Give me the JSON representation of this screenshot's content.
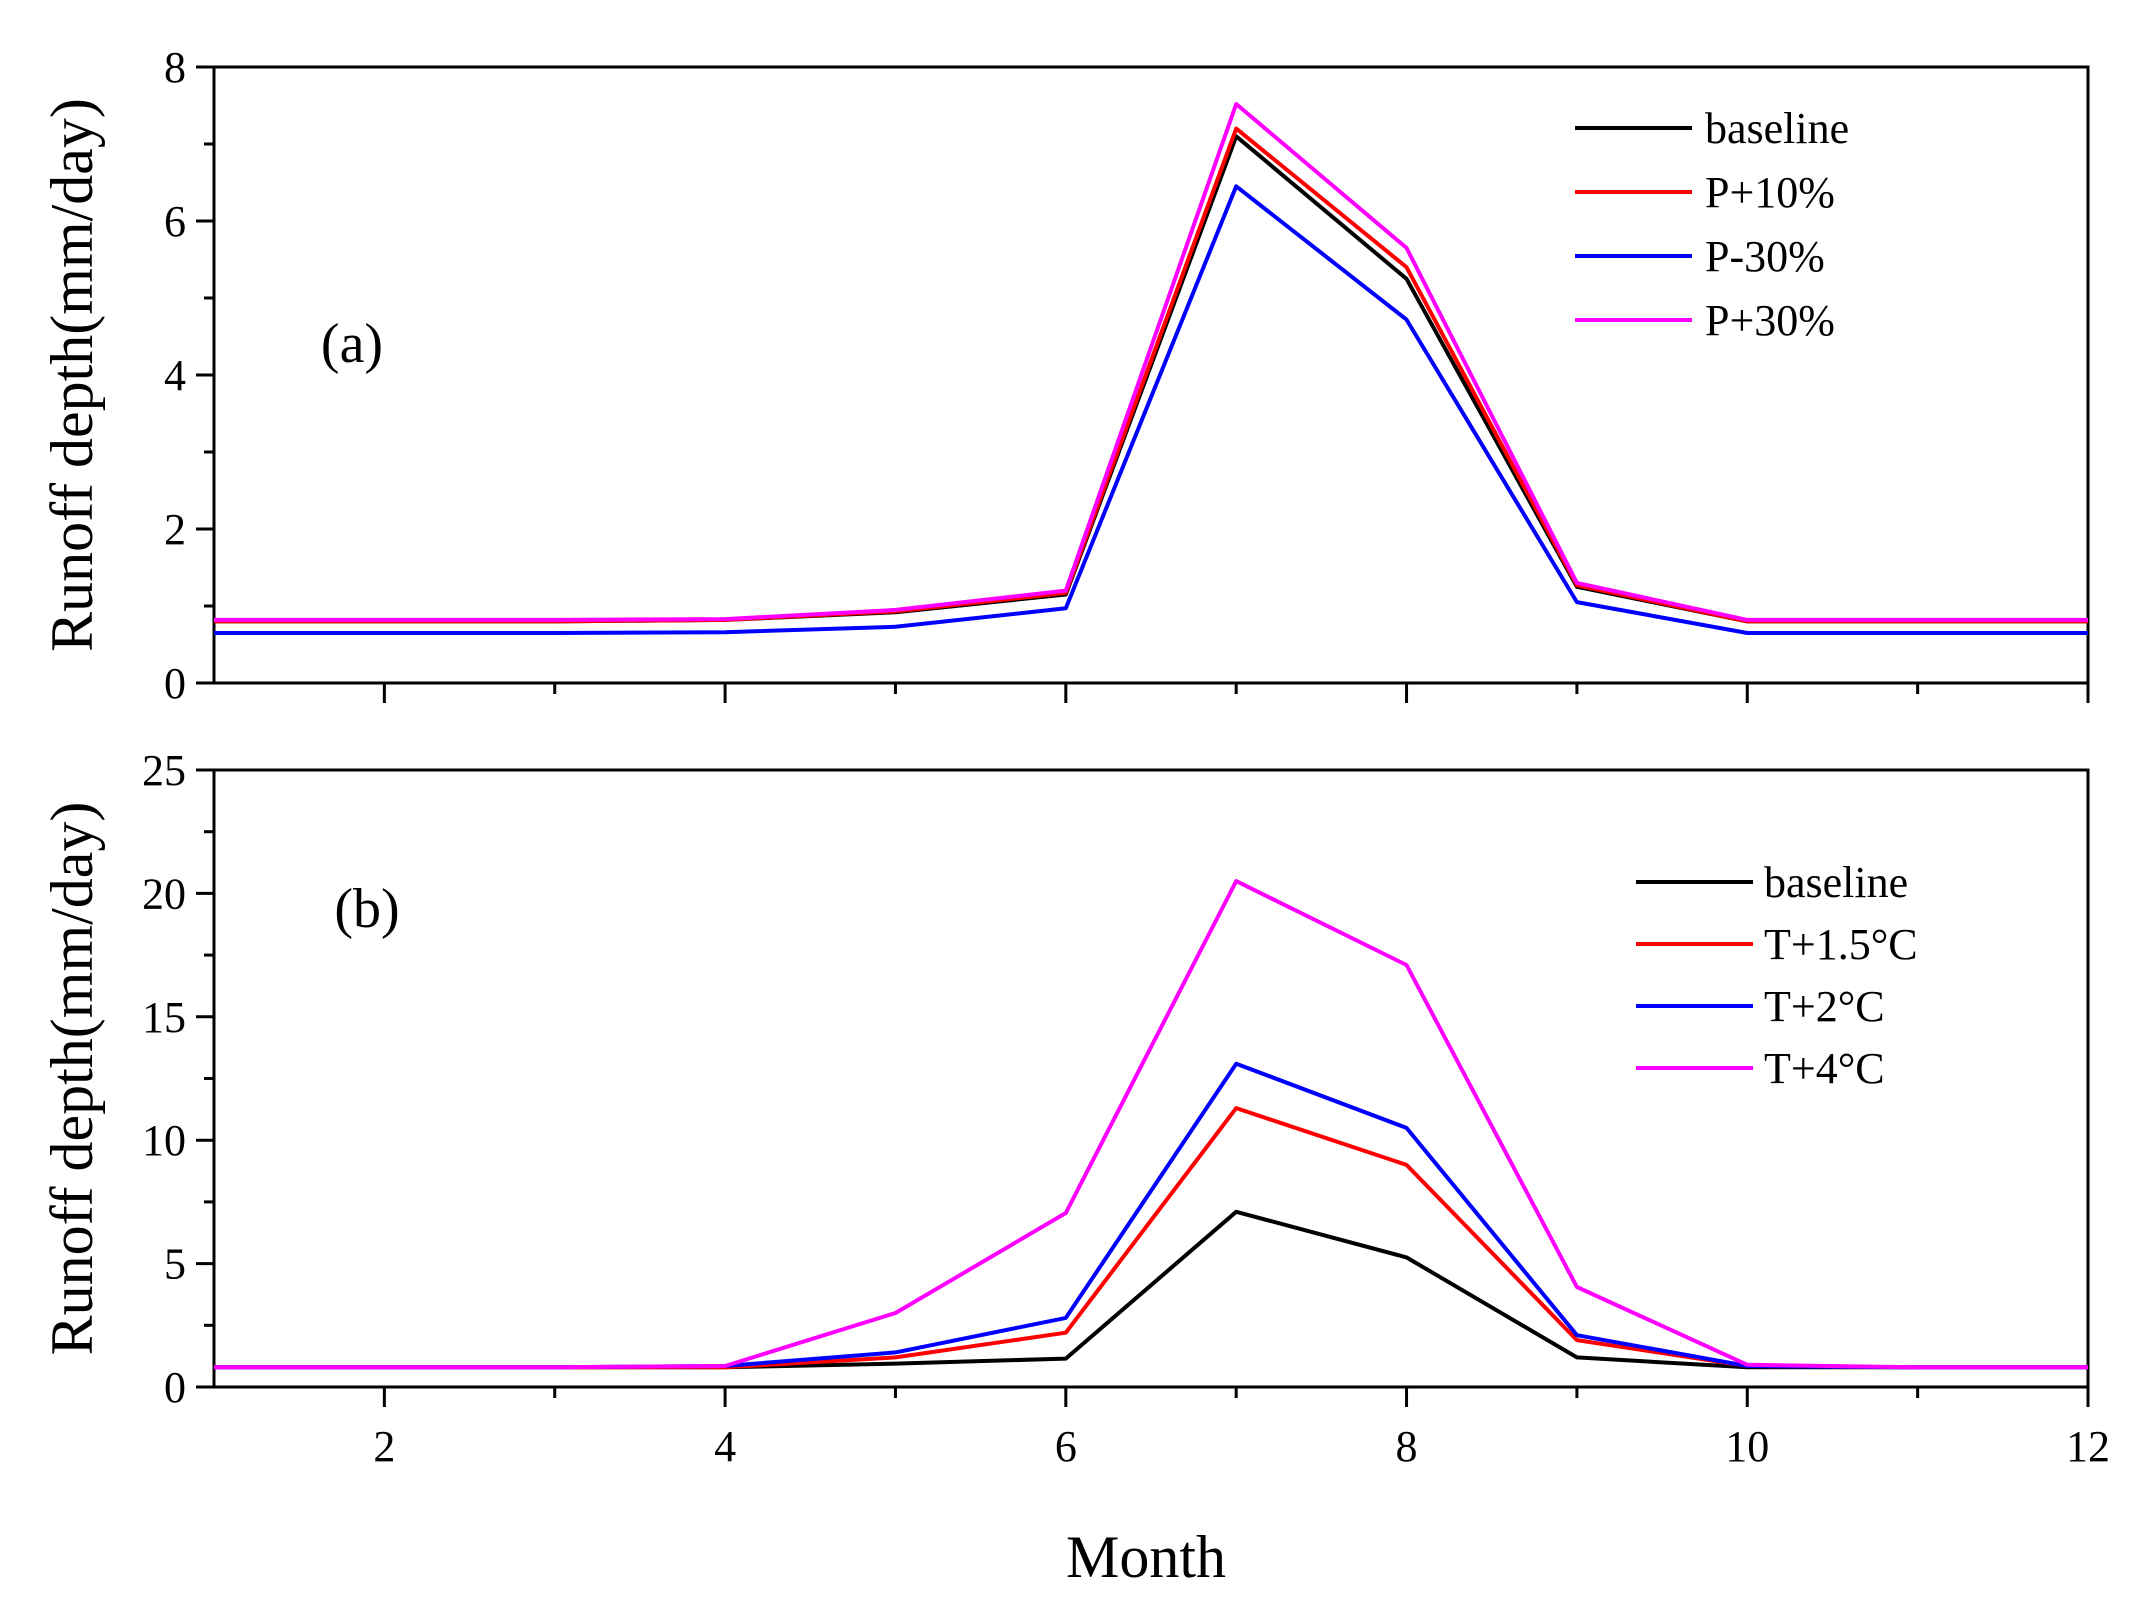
{
  "chart_data": [
    {
      "type": "line",
      "panel_label": "(a)",
      "ylabel": "Runoff depth(mm/day)",
      "xlabel": "",
      "xlim": [
        1,
        12
      ],
      "ylim": [
        0,
        8
      ],
      "yticks": [
        0,
        2,
        4,
        6,
        8
      ],
      "ytick_labels": [
        "0",
        "2",
        "4",
        "6",
        "8"
      ],
      "xticks": [
        2,
        4,
        6,
        8,
        10,
        12
      ],
      "legend_position": "top-right",
      "x": [
        1,
        2,
        3,
        4,
        5,
        6,
        7,
        8,
        9,
        10,
        11,
        12
      ],
      "series": [
        {
          "name": "baseline",
          "color": "#000000",
          "values": [
            0.8,
            0.8,
            0.8,
            0.82,
            0.92,
            1.15,
            7.1,
            5.25,
            1.25,
            0.8,
            0.8,
            0.8
          ]
        },
        {
          "name": "P+10%",
          "color": "#ff0000",
          "values": [
            0.8,
            0.8,
            0.8,
            0.82,
            0.93,
            1.17,
            7.2,
            5.4,
            1.27,
            0.8,
            0.8,
            0.8
          ]
        },
        {
          "name": "P-30%",
          "color": "#0000ff",
          "values": [
            0.65,
            0.65,
            0.65,
            0.66,
            0.73,
            0.97,
            6.45,
            4.72,
            1.05,
            0.65,
            0.65,
            0.65
          ]
        },
        {
          "name": "P+30%",
          "color": "#ff00ff",
          "values": [
            0.82,
            0.82,
            0.82,
            0.83,
            0.95,
            1.2,
            7.52,
            5.65,
            1.3,
            0.82,
            0.82,
            0.82
          ]
        }
      ]
    },
    {
      "type": "line",
      "panel_label": "(b)",
      "ylabel": "Runoff depth(mm/day)",
      "xlabel": "Month",
      "xlim": [
        1,
        12
      ],
      "ylim": [
        0,
        25
      ],
      "yticks": [
        0,
        5,
        10,
        15,
        20,
        25
      ],
      "ytick_labels": [
        "0",
        "5",
        "10",
        "15",
        "20",
        "25"
      ],
      "xticks": [
        2,
        4,
        6,
        8,
        10,
        12
      ],
      "xtick_labels": [
        "2",
        "4",
        "6",
        "8",
        "10",
        "12"
      ],
      "legend_position": "top-right",
      "x": [
        1,
        2,
        3,
        4,
        5,
        6,
        7,
        8,
        9,
        10,
        11,
        12
      ],
      "series": [
        {
          "name": "baseline",
          "color": "#000000",
          "values": [
            0.8,
            0.8,
            0.8,
            0.8,
            0.95,
            1.15,
            7.1,
            5.25,
            1.2,
            0.8,
            0.8,
            0.8
          ]
        },
        {
          "name": "T+1.5°C",
          "color": "#ff0000",
          "values": [
            0.8,
            0.8,
            0.8,
            0.8,
            1.2,
            2.2,
            11.3,
            9.0,
            1.9,
            0.85,
            0.8,
            0.8
          ]
        },
        {
          "name": "T+2°C",
          "color": "#0000ff",
          "values": [
            0.8,
            0.8,
            0.8,
            0.85,
            1.4,
            2.8,
            13.1,
            10.5,
            2.1,
            0.85,
            0.8,
            0.8
          ]
        },
        {
          "name": "T+4°C",
          "color": "#ff00ff",
          "values": [
            0.8,
            0.8,
            0.8,
            0.85,
            3.0,
            7.05,
            20.5,
            17.1,
            4.05,
            0.9,
            0.8,
            0.8
          ]
        }
      ]
    }
  ]
}
